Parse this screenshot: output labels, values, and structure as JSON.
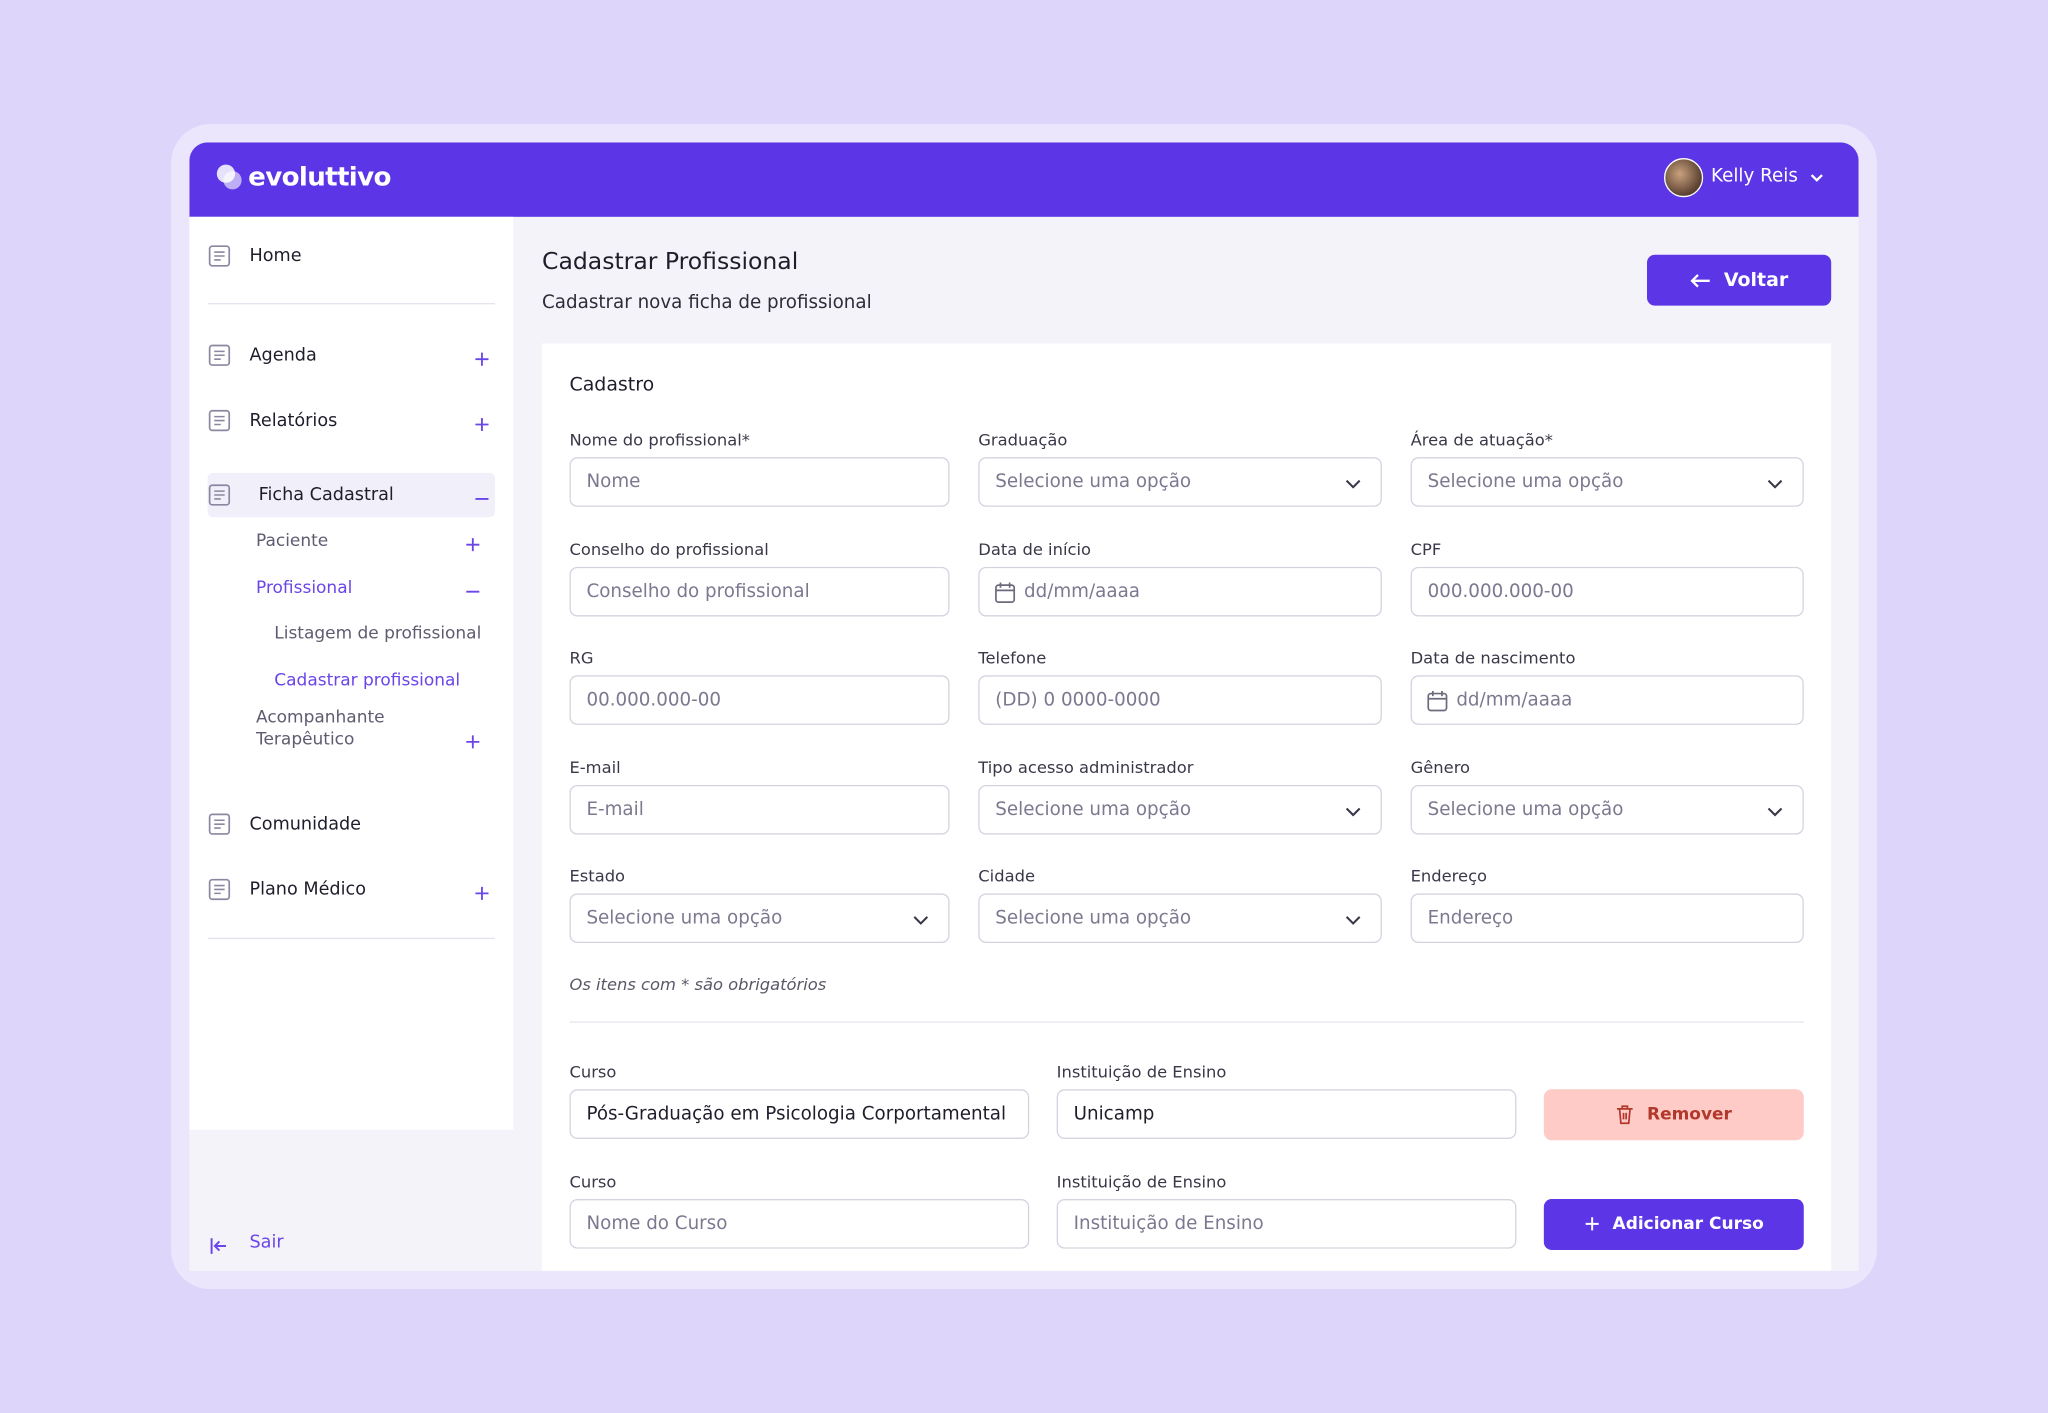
{
  "header": {
    "logo": "evoluttivo",
    "user": "Kelly Reis"
  },
  "sidebar": {
    "items": [
      {
        "label": "Home",
        "level": 0
      },
      {
        "label": "Agenda",
        "level": 0,
        "expander": "plus",
        "divider_before": true
      },
      {
        "label": "Relatórios",
        "level": 0,
        "expander": "plus"
      },
      {
        "label": "Ficha Cadastral",
        "level": 0,
        "expander": "minus",
        "highlight": true
      },
      {
        "label": "Paciente",
        "level": 1,
        "expander": "plus"
      },
      {
        "label": "Profissional",
        "level": 1,
        "expander": "minus",
        "active": true
      },
      {
        "label": "Listagem de profissional",
        "level": 2
      },
      {
        "label": "Cadastrar profissional",
        "level": 2,
        "active": true
      },
      {
        "label": "Acompanhante Terapêutico",
        "level": 1,
        "expander": "plus"
      },
      {
        "label": "Comunidade",
        "level": 0
      },
      {
        "label": "Plano Médico",
        "level": 0,
        "expander": "plus"
      }
    ],
    "logout": "Sair"
  },
  "page": {
    "title": "Cadastrar Profissional",
    "subtitle": "Cadastrar nova ficha de profissional",
    "back_button": "Voltar"
  },
  "form": {
    "section_title": "Cadastro",
    "fields": [
      {
        "label": "Nome do profissional*",
        "placeholder": "Nome",
        "kind": "text"
      },
      {
        "label": "Graduação",
        "placeholder": "Selecione uma opção",
        "kind": "select"
      },
      {
        "label": "Área de atuação*",
        "placeholder": "Selecione uma opção",
        "kind": "select"
      },
      {
        "label": "Conselho do profissional",
        "placeholder": "Conselho do profissional",
        "kind": "text"
      },
      {
        "label": "Data de início",
        "placeholder": "dd/mm/aaaa",
        "kind": "date"
      },
      {
        "label": "CPF",
        "placeholder": "000.000.000-00",
        "kind": "text"
      },
      {
        "label": "RG",
        "placeholder": "00.000.000-00",
        "kind": "text"
      },
      {
        "label": "Telefone",
        "placeholder": "(DD) 0 0000-0000",
        "kind": "text"
      },
      {
        "label": "Data de nascimento",
        "placeholder": "dd/mm/aaaa",
        "kind": "date"
      },
      {
        "label": "E-mail",
        "placeholder": "E-mail",
        "kind": "text"
      },
      {
        "label": "Tipo acesso administrador",
        "placeholder": "Selecione uma opção",
        "kind": "select"
      },
      {
        "label": "Gênero",
        "placeholder": "Selecione uma opção",
        "kind": "select"
      },
      {
        "label": "Estado",
        "placeholder": "Selecione uma opção",
        "kind": "select"
      },
      {
        "label": "Cidade",
        "placeholder": "Selecione uma opção",
        "kind": "select"
      },
      {
        "label": "Endereço",
        "placeholder": "Endereço",
        "kind": "text"
      }
    ],
    "note": "Os itens com * são obrigatórios",
    "courses": [
      {
        "course_label": "Curso",
        "course_value": "Pós-Graduação em Psicologia Corportamental",
        "institution_label": "Instituição de Ensino",
        "institution_value": "Unicamp",
        "button": "Remover"
      },
      {
        "course_label": "Curso",
        "course_placeholder": "Nome do Curso",
        "institution_label": "Instituição de Ensino",
        "institution_placeholder": "Instituição de Ensino",
        "button": "Adicionar Curso"
      }
    ]
  }
}
